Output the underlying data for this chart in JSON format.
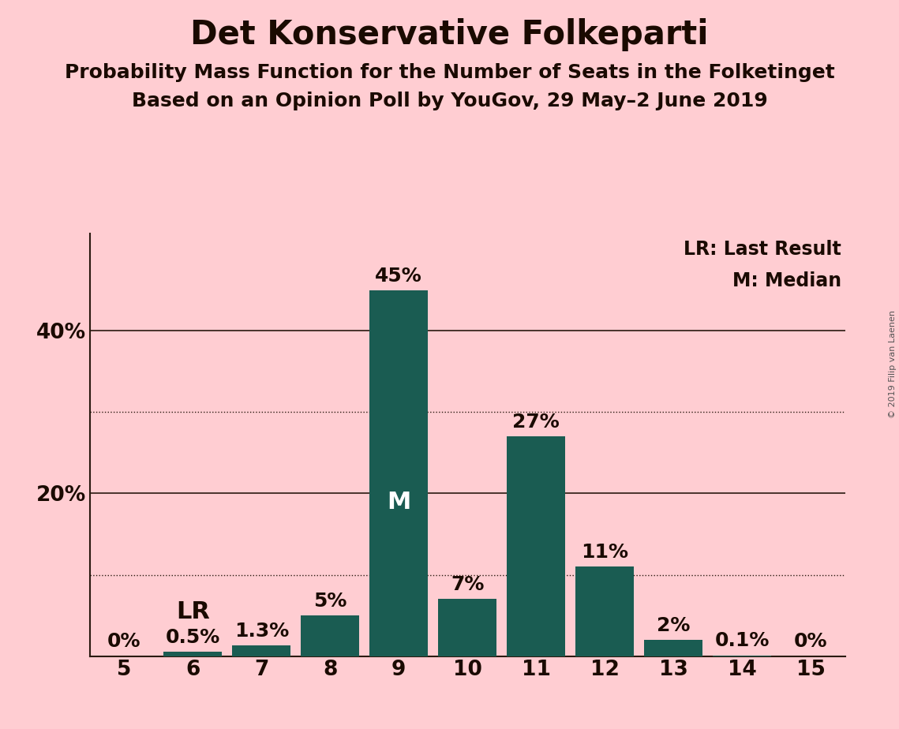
{
  "title": "Det Konservative Folkeparti",
  "subtitle1": "Probability Mass Function for the Number of Seats in the Folketinget",
  "subtitle2": "Based on an Opinion Poll by YouGov, 29 May–2 June 2019",
  "copyright": "© 2019 Filip van Laenen",
  "seats": [
    5,
    6,
    7,
    8,
    9,
    10,
    11,
    12,
    13,
    14,
    15
  ],
  "probabilities": [
    0.0,
    0.5,
    1.3,
    5.0,
    45.0,
    7.0,
    27.0,
    11.0,
    2.0,
    0.1,
    0.0
  ],
  "bar_color": "#1a5c52",
  "background_color": "#ffcdd2",
  "bar_labels": [
    "0%",
    "0.5%",
    "1.3%",
    "5%",
    "45%",
    "7%",
    "27%",
    "11%",
    "2%",
    "0.1%",
    "0%"
  ],
  "median_seat": 9,
  "lr_seat": 6,
  "legend_lr": "LR: Last Result",
  "legend_m": "M: Median",
  "ylim": [
    0,
    52
  ],
  "dotted_lines": [
    10,
    30
  ],
  "solid_lines": [
    20,
    40
  ],
  "title_fontsize": 30,
  "subtitle_fontsize": 18,
  "bar_label_fontsize": 18,
  "axis_tick_fontsize": 19,
  "legend_fontsize": 17,
  "median_label_fontsize": 22,
  "lr_label_fontsize": 22,
  "copyright_fontsize": 8
}
